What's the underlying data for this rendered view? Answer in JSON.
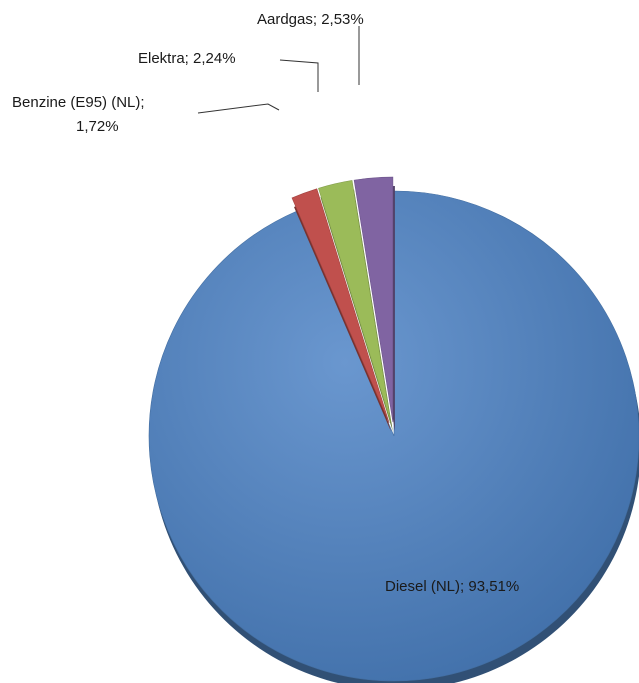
{
  "chart_data": {
    "type": "pie",
    "title": "",
    "exploded": true,
    "three_d": true,
    "legend": "none",
    "series": [
      {
        "name": "",
        "slices": [
          {
            "label": "Diesel (NL)",
            "value": 93.51,
            "value_text": "93,51%",
            "color": "#4F81BD"
          },
          {
            "label": "Benzine (E95) (NL)",
            "value": 1.72,
            "value_text": "1,72%",
            "color": "#C0504D"
          },
          {
            "label": "Elektra",
            "value": 2.24,
            "value_text": "2,24%",
            "color": "#9BBB59"
          },
          {
            "label": "Aardgas",
            "value": 2.53,
            "value_text": "2,53%",
            "color": "#8064A2"
          }
        ]
      }
    ]
  },
  "labels": {
    "diesel": "Diesel (NL); 93,51%",
    "benzine_line1": "Benzine (E95) (NL);",
    "benzine_line2": "1,72%",
    "elektra": "Elektra; 2,24%",
    "aardgas": "Aardgas; 2,53%"
  }
}
